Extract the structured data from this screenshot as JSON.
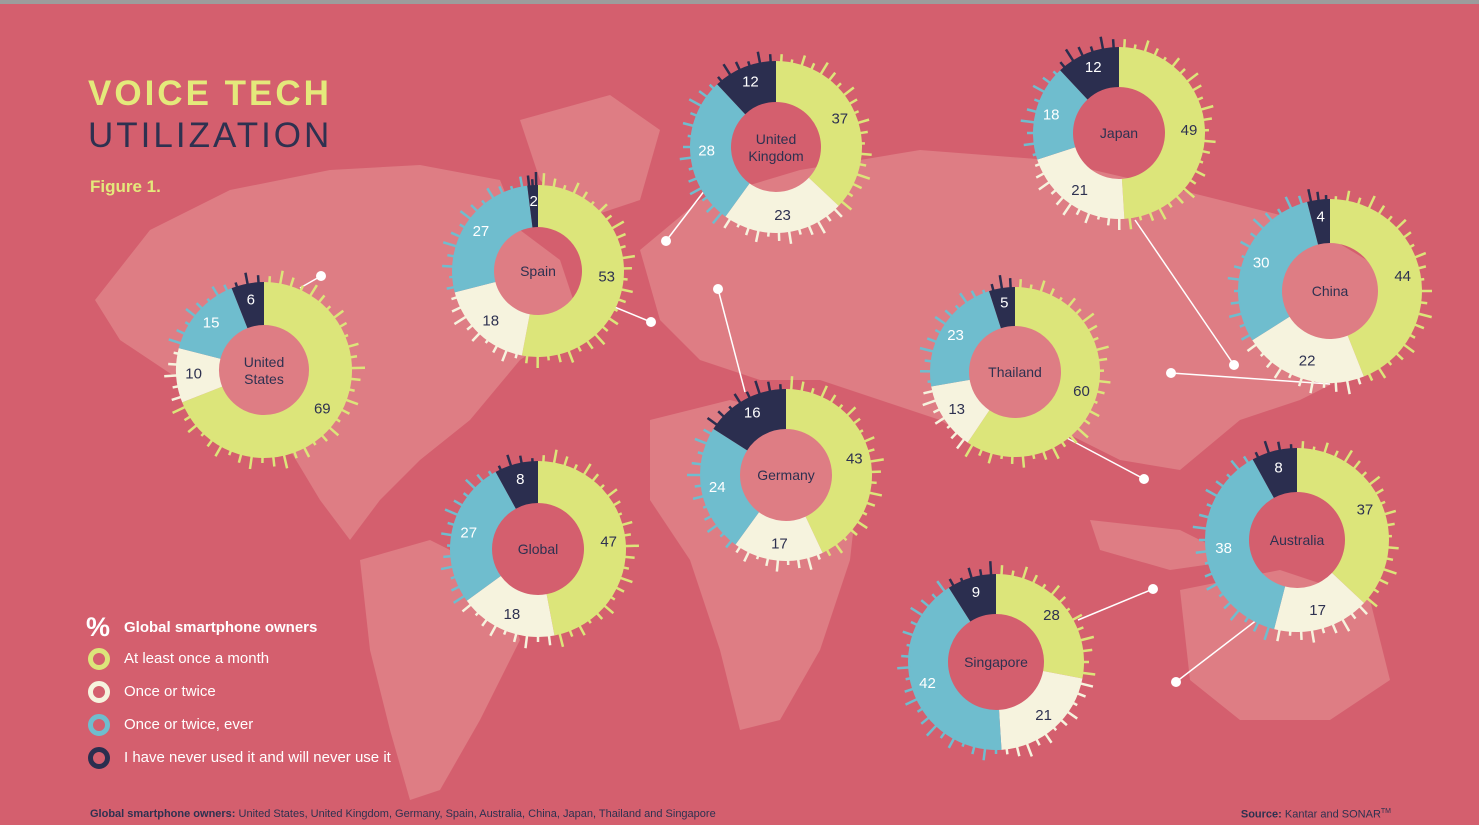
{
  "header": {
    "title_bold": "VOICE TECH",
    "title_light": "UTILIZATION",
    "figure_label": "Figure 1."
  },
  "legend": {
    "symbol": "%",
    "title": "Global smartphone owners",
    "items": [
      {
        "label": "At least once a month",
        "color": "#DCE57A"
      },
      {
        "label": "Once or twice",
        "color": "#F6F3DE"
      },
      {
        "label": "Once or twice, ever",
        "color": "#6FBDCE"
      },
      {
        "label": "I have never used it and will never use it",
        "color": "#2B2E4F"
      }
    ]
  },
  "footer": {
    "note_bold": "Global smartphone owners:",
    "note_text": "United States, United Kingdom, Germany, Spain, Australia, China, Japan, Thailand and Singapore",
    "source_bold": "Source:",
    "source_text": "Kantar and SONAR",
    "source_tm": "TM"
  },
  "colors": {
    "background": "#D45F6E",
    "map": "#DE7D84",
    "monthly": "#DCE57A",
    "once_or_twice": "#F6F3DE",
    "ever": "#6FBDCE",
    "never": "#2B2E4F",
    "title_accent": "#E4E97B",
    "dark_text": "#2E3150"
  },
  "chart_data": {
    "type": "pie",
    "unit": "%",
    "series_labels": [
      "At least once a month",
      "Once or twice",
      "Once or twice, ever",
      "I have never used it and will never use it"
    ],
    "charts": [
      {
        "label": "United States",
        "values": [
          69,
          10,
          15,
          6
        ]
      },
      {
        "label": "Spain",
        "values": [
          53,
          18,
          27,
          2
        ]
      },
      {
        "label": "United Kingdom",
        "values": [
          37,
          23,
          28,
          12
        ]
      },
      {
        "label": "Japan",
        "values": [
          49,
          21,
          18,
          12
        ]
      },
      {
        "label": "China",
        "values": [
          44,
          22,
          30,
          4
        ]
      },
      {
        "label": "Thailand",
        "values": [
          60,
          13,
          23,
          5
        ]
      },
      {
        "label": "Germany",
        "values": [
          43,
          17,
          24,
          16
        ]
      },
      {
        "label": "Global",
        "values": [
          47,
          18,
          27,
          8
        ]
      },
      {
        "label": "Australia",
        "values": [
          37,
          17,
          38,
          8
        ]
      },
      {
        "label": "Singapore",
        "values": [
          28,
          21,
          42,
          9
        ]
      }
    ]
  }
}
